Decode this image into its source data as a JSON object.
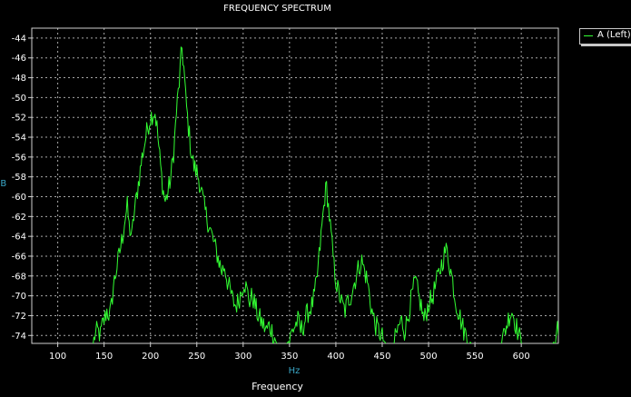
{
  "chart_data": {
    "type": "line",
    "title": "FREQUENCY SPECTRUM",
    "xlabel": "Frequency",
    "x_unit": "Hz",
    "y_unit": "dB",
    "xlim": [
      72,
      640
    ],
    "ylim": [
      -74.8,
      -43
    ],
    "x_ticks": [
      100,
      150,
      200,
      250,
      300,
      350,
      400,
      450,
      500,
      550,
      600
    ],
    "y_ticks": [
      -44,
      -46,
      -48,
      -50,
      -52,
      -54,
      -56,
      -58,
      -60,
      -62,
      -64,
      -66,
      -68,
      -70,
      -72,
      -74
    ],
    "grid": true,
    "legend_position": "right",
    "series": [
      {
        "name": "A (Left)",
        "color": "#33ff33",
        "points": [
          [
            138,
            -75
          ],
          [
            140,
            -74
          ],
          [
            143,
            -73.5
          ],
          [
            146,
            -74
          ],
          [
            148,
            -73
          ],
          [
            150,
            -72.5
          ],
          [
            153,
            -71.5
          ],
          [
            156,
            -72
          ],
          [
            158,
            -71
          ],
          [
            160,
            -69
          ],
          [
            162,
            -68
          ],
          [
            165,
            -66.5
          ],
          [
            168,
            -65
          ],
          [
            170,
            -64
          ],
          [
            172,
            -62.5
          ],
          [
            175,
            -61
          ],
          [
            177,
            -63
          ],
          [
            180,
            -64
          ],
          [
            182,
            -62
          ],
          [
            185,
            -60
          ],
          [
            188,
            -58
          ],
          [
            191,
            -56
          ],
          [
            194,
            -54.5
          ],
          [
            197,
            -53
          ],
          [
            200,
            -52
          ],
          [
            203,
            -51.5
          ],
          [
            205,
            -51.5
          ],
          [
            207,
            -53
          ],
          [
            209,
            -55
          ],
          [
            212,
            -58
          ],
          [
            214,
            -59.5
          ],
          [
            216,
            -60.5
          ],
          [
            219,
            -59.5
          ],
          [
            222,
            -58
          ],
          [
            225,
            -55.5
          ],
          [
            228,
            -51.5
          ],
          [
            231,
            -48.5
          ],
          [
            233,
            -46
          ],
          [
            234,
            -45
          ],
          [
            236,
            -47
          ],
          [
            238,
            -50
          ],
          [
            241,
            -53
          ],
          [
            244,
            -55.5
          ],
          [
            247,
            -57
          ],
          [
            250,
            -57.5
          ],
          [
            253,
            -58.5
          ],
          [
            256,
            -60
          ],
          [
            259,
            -61.5
          ],
          [
            262,
            -62.5
          ],
          [
            265,
            -63.5
          ],
          [
            268,
            -64.5
          ],
          [
            271,
            -65.5
          ],
          [
            274,
            -66.5
          ],
          [
            277,
            -67.5
          ],
          [
            280,
            -67
          ],
          [
            283,
            -68.5
          ],
          [
            286,
            -69.5
          ],
          [
            289,
            -70.5
          ],
          [
            292,
            -71
          ],
          [
            295,
            -70.5
          ],
          [
            298,
            -69.5
          ],
          [
            301,
            -68.5
          ],
          [
            304,
            -69.5
          ],
          [
            307,
            -70.5
          ],
          [
            310,
            -70
          ],
          [
            313,
            -71
          ],
          [
            316,
            -72
          ],
          [
            319,
            -72.5
          ],
          [
            322,
            -73
          ],
          [
            325,
            -73.5
          ],
          [
            328,
            -73
          ],
          [
            331,
            -73.5
          ],
          [
            334,
            -74.2
          ],
          [
            337,
            -75
          ],
          [
            345,
            -75
          ],
          [
            350,
            -74.5
          ],
          [
            353,
            -73.5
          ],
          [
            356,
            -73
          ],
          [
            359,
            -72.5
          ],
          [
            362,
            -73.5
          ],
          [
            365,
            -73
          ],
          [
            368,
            -72
          ],
          [
            371,
            -71.5
          ],
          [
            374,
            -71
          ],
          [
            377,
            -70
          ],
          [
            380,
            -68
          ],
          [
            383,
            -65
          ],
          [
            386,
            -62
          ],
          [
            388,
            -60
          ],
          [
            390,
            -59
          ],
          [
            392,
            -61
          ],
          [
            395,
            -64
          ],
          [
            398,
            -67
          ],
          [
            401,
            -69
          ],
          [
            404,
            -70
          ],
          [
            407,
            -71
          ],
          [
            410,
            -71.5
          ],
          [
            413,
            -70.5
          ],
          [
            416,
            -70
          ],
          [
            419,
            -69
          ],
          [
            422,
            -68
          ],
          [
            425,
            -67
          ],
          [
            428,
            -66.5
          ],
          [
            431,
            -67.5
          ],
          [
            434,
            -68.5
          ],
          [
            437,
            -70.5
          ],
          [
            440,
            -72
          ],
          [
            443,
            -73
          ],
          [
            446,
            -73.5
          ],
          [
            449,
            -74
          ],
          [
            452,
            -74.5
          ],
          [
            455,
            -75
          ],
          [
            462,
            -75
          ],
          [
            465,
            -74
          ],
          [
            468,
            -73
          ],
          [
            471,
            -72.5
          ],
          [
            474,
            -73.5
          ],
          [
            477,
            -72.5
          ],
          [
            480,
            -71
          ],
          [
            483,
            -69.5
          ],
          [
            486,
            -68.5
          ],
          [
            489,
            -70
          ],
          [
            492,
            -71
          ],
          [
            495,
            -72.5
          ],
          [
            498,
            -71.5
          ],
          [
            501,
            -70.5
          ],
          [
            503,
            -70.5
          ],
          [
            506,
            -69.5
          ],
          [
            509,
            -68.5
          ],
          [
            512,
            -67.5
          ],
          [
            515,
            -66.5
          ],
          [
            518,
            -65.5
          ],
          [
            520,
            -65.5
          ],
          [
            523,
            -67
          ],
          [
            526,
            -68.5
          ],
          [
            529,
            -70.5
          ],
          [
            532,
            -71.5
          ],
          [
            535,
            -72.5
          ],
          [
            538,
            -73.5
          ],
          [
            541,
            -74
          ],
          [
            544,
            -74.5
          ],
          [
            547,
            -75
          ],
          [
            578,
            -75
          ],
          [
            581,
            -74
          ],
          [
            584,
            -73
          ],
          [
            587,
            -72
          ],
          [
            590,
            -71.5
          ],
          [
            593,
            -72.5
          ],
          [
            596,
            -73.5
          ],
          [
            599,
            -74.5
          ],
          [
            601,
            -75
          ],
          [
            633,
            -75
          ],
          [
            636,
            -74.5
          ],
          [
            638,
            -73
          ],
          [
            640,
            -74
          ]
        ]
      }
    ]
  }
}
